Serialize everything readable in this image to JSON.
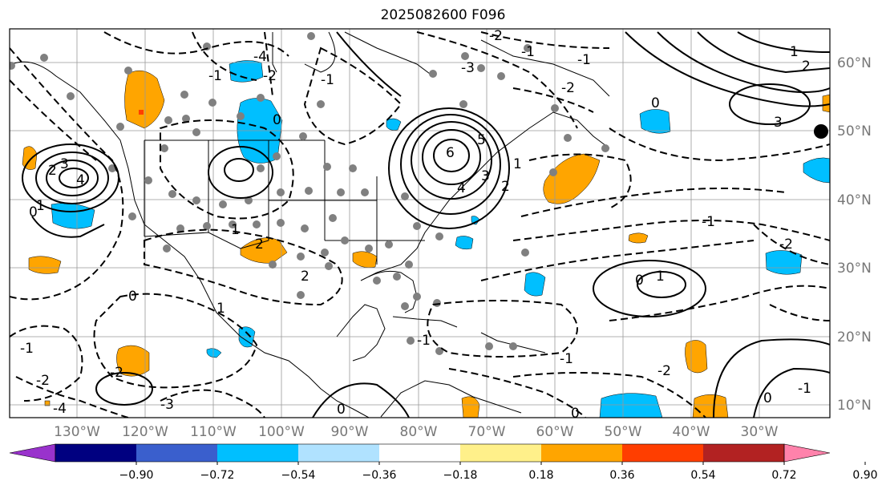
{
  "title": "2025082600 F096",
  "lon_labels": [
    "130°W",
    "120°W",
    "110°W",
    "100°W",
    "90°W",
    "80°W",
    "70°W",
    "60°W",
    "50°W",
    "40°W",
    "30°W"
  ],
  "lat_labels": [
    "60°N",
    "50°N",
    "40°N",
    "30°N",
    "20°N",
    "10°N"
  ],
  "colorbar": {
    "colors": [
      "#9932cc",
      "#000080",
      "#3a5fcd",
      "#00bfff",
      "#b0e2ff",
      "#ffffff",
      "#fff08a",
      "#ffa500",
      "#ff3e00",
      "#b22222",
      "#ff82ab"
    ],
    "labels": [
      "−0.90",
      "−0.72",
      "−0.54",
      "−0.36",
      "−0.18",
      "0.18",
      "0.36",
      "0.54",
      "0.72",
      "0.90"
    ]
  },
  "contour_labels": [
    "4",
    "3",
    "2",
    "1",
    "0",
    "6",
    "5",
    "4",
    "3",
    "2",
    "1",
    "0",
    "2",
    "1",
    "0",
    "-1",
    "-2",
    "-1",
    "-2",
    "0",
    "1",
    "2",
    "3",
    "0",
    "1",
    "0",
    "-1",
    "-1",
    "0",
    "1",
    "2",
    "-1",
    "-2",
    "0",
    "-2",
    "-1",
    "-4",
    "-3",
    "-2",
    "-1",
    "-1",
    "-2",
    "-3",
    "-4",
    "-1",
    "-2"
  ],
  "colors": {
    "positive_shade": "#ffa500",
    "negative_shade": "#00bfff",
    "station_dots": "#808080",
    "land_outline": "#000000"
  }
}
